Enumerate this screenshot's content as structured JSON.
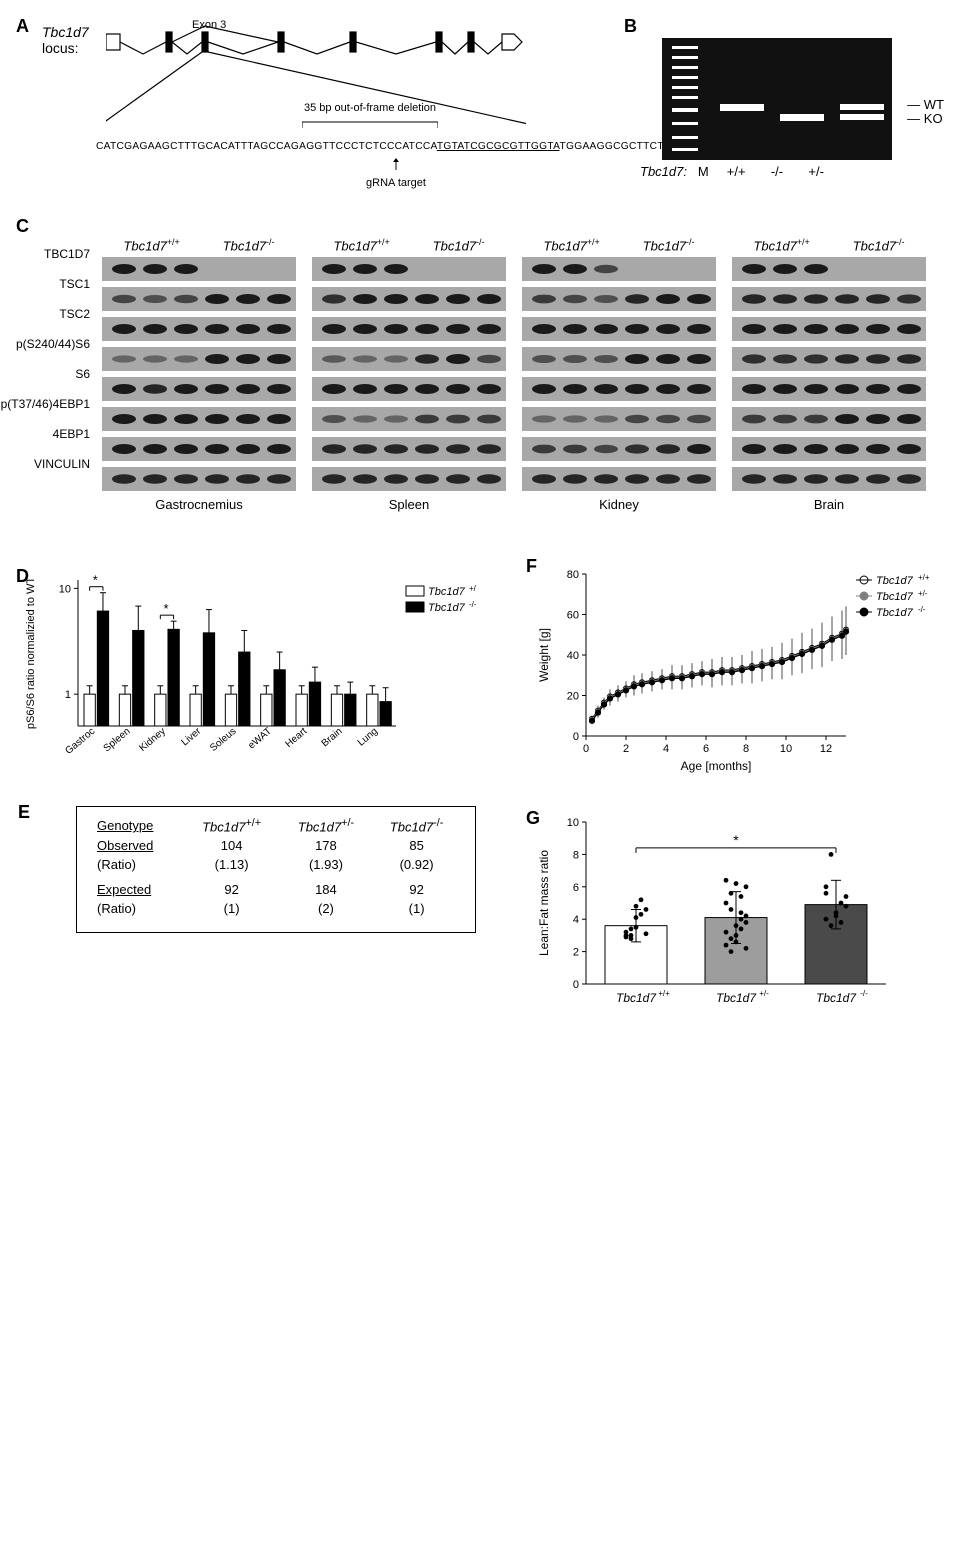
{
  "panelA": {
    "label": "A",
    "locus_line1": "Tbc1d7",
    "locus_line2": "locus:",
    "exon_label": "Exon 3",
    "deletion_note": "35 bp out-of-frame deletion",
    "sequence_left": "CATCGAGAAGCTTTGCACATTTAGCCAGAGGTTCCCTCTCCCATCCA",
    "sequence_underlined": "TGTATCGCGCGTTGGTA",
    "sequence_right": "TGGAAGGCGCTTCTA",
    "grna_label": "gRNA target"
  },
  "panelB": {
    "label": "B",
    "lane_ladder": "M",
    "lanes": [
      "+/+",
      "-/-",
      "+/-"
    ],
    "right_wt": "WT",
    "right_ko": "KO",
    "bottom_gene": "Tbc1d7:"
  },
  "panelC": {
    "label": "C",
    "genotype_wt": "Tbc1d7",
    "sup_wt": "+/+",
    "sup_ko": "-/-",
    "row_labels": [
      "TBC1D7",
      "TSC1",
      "TSC2",
      "p(S240/44)S6",
      "S6",
      "p(T37/46)4EBP1",
      "4EBP1",
      "VINCULIN"
    ],
    "tissues": [
      "Gastrocnemius",
      "Spleen",
      "Kidney",
      "Brain"
    ],
    "blot_bg": "#a8a8a8",
    "band_color": "#1a1a1a",
    "band_patterns": {
      "TBC1D7": [
        [
          1,
          1,
          1,
          0,
          0,
          0
        ],
        [
          1,
          1,
          1,
          0,
          0,
          0
        ],
        [
          1,
          1,
          0.6,
          0,
          0,
          0
        ],
        [
          1,
          1,
          1,
          0,
          0,
          0
        ]
      ],
      "TSC1": [
        [
          0.6,
          0.5,
          0.6,
          1,
          1,
          1
        ],
        [
          0.8,
          1,
          1,
          1,
          1,
          1
        ],
        [
          0.7,
          0.6,
          0.5,
          0.9,
          1,
          1
        ],
        [
          0.9,
          0.9,
          0.9,
          0.9,
          0.9,
          0.8
        ]
      ],
      "TSC2": [
        [
          1,
          1,
          1,
          1,
          1,
          1
        ],
        [
          1,
          1,
          1,
          1,
          1,
          1
        ],
        [
          1,
          1,
          1,
          1,
          1,
          1
        ],
        [
          1,
          1,
          1,
          1,
          1,
          1
        ]
      ],
      "p(S240/44)S6": [
        [
          0.3,
          0.3,
          0.3,
          1,
          1,
          1
        ],
        [
          0.4,
          0.3,
          0.3,
          0.9,
          1,
          0.6
        ],
        [
          0.5,
          0.5,
          0.5,
          1,
          1,
          1
        ],
        [
          0.8,
          0.8,
          0.8,
          0.9,
          0.9,
          0.9
        ]
      ],
      "S6": [
        [
          1,
          0.9,
          1,
          1,
          1,
          1
        ],
        [
          1,
          1,
          1,
          1,
          1,
          1
        ],
        [
          1,
          1,
          1,
          1,
          1,
          1
        ],
        [
          1,
          1,
          1,
          1,
          1,
          1
        ]
      ],
      "p(T37/46)4EBP1": [
        [
          1,
          1,
          1,
          1,
          1,
          1
        ],
        [
          0.5,
          0.3,
          0.3,
          0.7,
          0.7,
          0.7
        ],
        [
          0.3,
          0.3,
          0.3,
          0.6,
          0.6,
          0.6
        ],
        [
          0.7,
          0.7,
          0.7,
          1,
          1,
          1
        ]
      ],
      "4EBP1": [
        [
          1,
          1,
          1,
          1,
          1,
          1
        ],
        [
          0.9,
          0.9,
          0.9,
          0.9,
          0.9,
          0.9
        ],
        [
          0.7,
          0.7,
          0.6,
          0.8,
          0.9,
          1
        ],
        [
          1,
          1,
          1,
          1,
          1,
          1
        ]
      ],
      "VINCULIN": [
        [
          0.9,
          0.9,
          0.9,
          0.9,
          0.9,
          0.9
        ],
        [
          0.9,
          0.9,
          0.9,
          0.9,
          0.9,
          0.9
        ],
        [
          0.9,
          0.9,
          0.9,
          0.9,
          0.9,
          0.9
        ],
        [
          0.9,
          0.9,
          0.9,
          0.9,
          0.9,
          0.9
        ]
      ]
    }
  },
  "panelD": {
    "label": "D",
    "ylabel": "pS6/S6 ratio normalizied to WT",
    "yscale": "log",
    "yticks": [
      1,
      10
    ],
    "categories": [
      "Gastroc",
      "Spleen",
      "Kidney",
      "Liver",
      "Soleus",
      "eWAT",
      "Heart",
      "Brain",
      "Lung"
    ],
    "wt_color": "#ffffff",
    "ko_color": "#000000",
    "legend": [
      "Tbc1d7",
      "Tbc1d7"
    ],
    "legend_sup": [
      "+/+",
      "-/-"
    ],
    "wt_vals": [
      1,
      1,
      1,
      1,
      1,
      1,
      1,
      1,
      1
    ],
    "ko_vals": [
      6.1,
      4.0,
      4.1,
      3.8,
      2.5,
      1.7,
      1.3,
      1.0,
      0.85
    ],
    "wt_err": [
      0.2,
      0.2,
      0.2,
      0.2,
      0.2,
      0.2,
      0.2,
      0.2,
      0.2
    ],
    "ko_err": [
      3.0,
      2.8,
      0.8,
      2.5,
      1.5,
      0.8,
      0.5,
      0.3,
      0.3
    ],
    "sig_idx": [
      0,
      2
    ],
    "sig_mark": "*"
  },
  "panelE": {
    "label": "E",
    "headers": [
      "Genotype",
      "Tbc1d7",
      "Tbc1d7",
      "Tbc1d7"
    ],
    "header_sup": [
      "",
      "+/+",
      "+/-",
      "-/-"
    ],
    "rows": [
      {
        "label": "Observed",
        "sub": "(Ratio)",
        "vals": [
          "104",
          "178",
          "85"
        ],
        "subvals": [
          "(1.13)",
          "(1.93)",
          "(0.92)"
        ]
      },
      {
        "label": "Expected",
        "sub": "(Ratio)",
        "vals": [
          "92",
          "184",
          "92"
        ],
        "subvals": [
          "(1)",
          "(2)",
          "(1)"
        ]
      }
    ]
  },
  "panelF": {
    "label": "F",
    "ylabel": "Weight [g]",
    "xlabel": "Age [months]",
    "xlim": [
      0,
      13
    ],
    "ylim": [
      0,
      80
    ],
    "xticks": [
      0,
      2,
      4,
      6,
      8,
      10,
      12
    ],
    "yticks": [
      0,
      20,
      40,
      60,
      80
    ],
    "series": [
      {
        "name": "Tbc1d7",
        "sup": "+/+",
        "marker": "circle",
        "fill": "#ffffff",
        "stroke": "#000000"
      },
      {
        "name": "Tbc1d7",
        "sup": "+/-",
        "marker": "circle",
        "fill": "#808080",
        "stroke": "#808080"
      },
      {
        "name": "Tbc1d7",
        "sup": "-/-",
        "marker": "circle",
        "fill": "#000000",
        "stroke": "#000000"
      }
    ],
    "x": [
      0.3,
      0.6,
      0.9,
      1.2,
      1.6,
      2.0,
      2.4,
      2.8,
      3.3,
      3.8,
      4.3,
      4.8,
      5.3,
      5.8,
      6.3,
      6.8,
      7.3,
      7.8,
      8.3,
      8.8,
      9.3,
      9.8,
      10.3,
      10.8,
      11.3,
      11.8,
      12.3,
      12.8,
      13.0
    ],
    "y_all": [
      8,
      12,
      16,
      19,
      21,
      23,
      25,
      26,
      27,
      28,
      29,
      29,
      30,
      31,
      31,
      32,
      32,
      33,
      34,
      35,
      36,
      37,
      39,
      41,
      43,
      45,
      48,
      50,
      52
    ],
    "err": [
      2,
      3,
      3,
      4,
      4,
      4,
      5,
      5,
      5,
      5,
      6,
      6,
      6,
      6,
      7,
      7,
      7,
      7,
      8,
      8,
      8,
      9,
      9,
      10,
      10,
      11,
      11,
      12,
      12
    ]
  },
  "panelG": {
    "label": "G",
    "ylabel": "Lean:Fat mass ratio",
    "ylim": [
      0,
      10
    ],
    "yticks": [
      0,
      2,
      4,
      6,
      8,
      10
    ],
    "groups": [
      "Tbc1d7",
      "Tbc1d7",
      "Tbc1d7"
    ],
    "groups_sup": [
      "+/+",
      "+/-",
      "-/-"
    ],
    "colors": [
      "#ffffff",
      "#9d9d9d",
      "#4a4a4a"
    ],
    "means": [
      3.6,
      4.1,
      4.9
    ],
    "err": [
      1.0,
      1.6,
      1.5
    ],
    "points": [
      [
        3.2,
        3.0,
        4.8,
        4.3,
        3.1,
        2.9,
        3.4,
        4.1,
        5.2,
        4.6,
        3.0,
        2.8,
        3.5
      ],
      [
        2.4,
        2.0,
        3.0,
        3.4,
        4.2,
        5.0,
        5.6,
        6.2,
        4.0,
        3.8,
        3.2,
        2.8,
        2.6,
        5.4,
        6.0,
        6.4,
        4.6,
        3.6,
        4.4,
        2.2
      ],
      [
        4.0,
        3.6,
        4.4,
        5.0,
        5.4,
        6.0,
        8.0,
        4.2,
        3.8,
        4.8,
        5.6
      ]
    ],
    "sig_mark": "*"
  }
}
